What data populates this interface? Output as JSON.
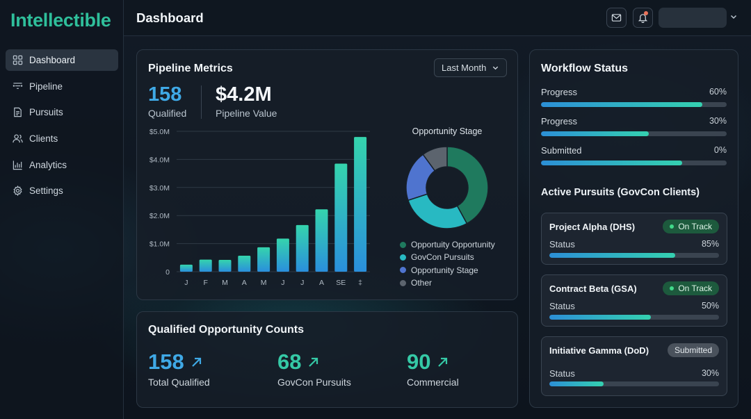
{
  "app": {
    "logo": "Intellectible",
    "page_title": "Dashboard"
  },
  "sidebar": {
    "items": [
      {
        "label": "Dashboard",
        "icon": "grid-icon",
        "active": true
      },
      {
        "label": "Pipeline",
        "icon": "filter-icon"
      },
      {
        "label": "Pursuits",
        "icon": "document-icon"
      },
      {
        "label": "Clients",
        "icon": "users-icon"
      },
      {
        "label": "Analytics",
        "icon": "bar-chart-icon"
      },
      {
        "label": "Settings",
        "icon": "gear-icon"
      }
    ]
  },
  "header": {
    "mail_icon": "mail-icon",
    "bell_icon": "bell-icon",
    "chevron_icon": "chevron-down-icon"
  },
  "pipeline": {
    "title": "Pipeline Metrics",
    "period": "Last Month",
    "qualified_value": "158",
    "qualified_label": "Qualified",
    "pipeline_value": "$4.2M",
    "pipeline_label": "Pipeline Value"
  },
  "chart_data": [
    {
      "type": "bar",
      "title": "",
      "categories": [
        "J",
        "F",
        "M",
        "A",
        "M",
        "J",
        "J",
        "A",
        "SE",
        "‡"
      ],
      "values": [
        0.25,
        0.43,
        0.42,
        0.57,
        0.87,
        1.18,
        1.66,
        2.22,
        3.85,
        4.8
      ],
      "y_tick_labels": [
        "0",
        "$1.0M",
        "$2.0M",
        "$3.0M",
        "$4.0M",
        "$5.0M"
      ],
      "ylim": [
        0,
        5
      ],
      "grid": true,
      "colors": {
        "top": "#35d4ad",
        "bottom": "#2a8fdc"
      }
    },
    {
      "type": "pie",
      "title": "Opportunity Stage",
      "labels": [
        "Opportuity Opportunity",
        "GovCon Pursuits",
        "Opportunity Stage",
        "Other"
      ],
      "values": [
        42,
        28,
        20,
        10
      ],
      "colors": [
        "#1f7a5e",
        "#28b9c2",
        "#4f74cf",
        "#5c646e"
      ],
      "legend": "bottom"
    }
  ],
  "counts": {
    "title": "Qualified Opportunity Counts",
    "items": [
      {
        "value": "158",
        "label": "Total Qualified",
        "color": "#3fa9e6"
      },
      {
        "value": "68",
        "label": "GovCon Pursuits",
        "color": "#35c9a6"
      },
      {
        "value": "90",
        "label": "Commercial",
        "color": "#35c9a6"
      }
    ]
  },
  "workflow": {
    "title": "Workflow Status",
    "rows": [
      {
        "label": "Progress",
        "pct": "60%",
        "fill": 0.87
      },
      {
        "label": "Progress",
        "pct": "30%",
        "fill": 0.58
      },
      {
        "label": "Submitted",
        "pct": "0%",
        "fill": 0.76
      }
    ],
    "section_title": "Active Pursuits (GovCon Clients)",
    "pursuits": [
      {
        "name": "Project Alpha (DHS)",
        "badge": "On Track",
        "badge_type": "green",
        "status_label": "Status",
        "pct": "85%",
        "fill": 0.74
      },
      {
        "name": "Contract Beta (GSA)",
        "badge": "On Track",
        "badge_type": "green",
        "status_label": "Status",
        "pct": "50%",
        "fill": 0.6
      },
      {
        "name": "Initiative Gamma (DoD)",
        "badge": "Submitted",
        "badge_type": "gray",
        "status_label": "Status",
        "pct": "30%",
        "fill": 0.32
      }
    ]
  }
}
